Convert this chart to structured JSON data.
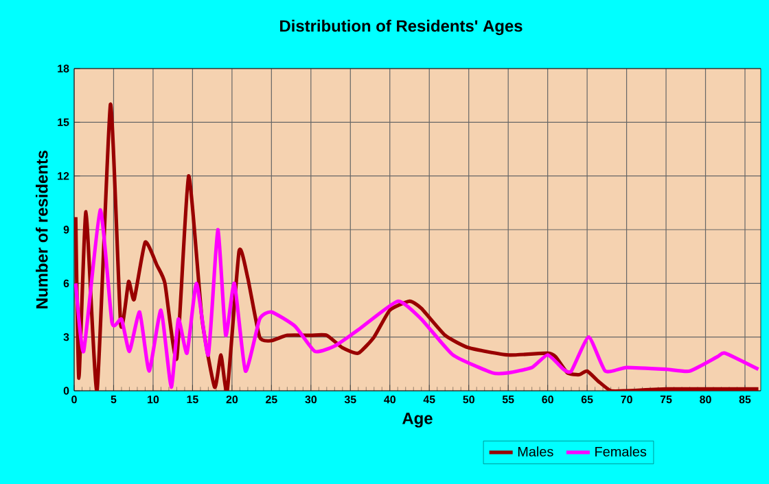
{
  "chart_data": {
    "type": "line",
    "title": "Distribution of Residents' Ages",
    "xlabel": "Age",
    "ylabel": "Number of residents",
    "xlim": [
      0,
      87
    ],
    "xticks": [
      0,
      5,
      10,
      15,
      20,
      25,
      30,
      35,
      40,
      45,
      50,
      55,
      60,
      65,
      70,
      75,
      80,
      85
    ],
    "ylim": [
      0,
      18
    ],
    "yticks": [
      0,
      3,
      6,
      9,
      12,
      15,
      18
    ],
    "grid": true,
    "legend": "bottom",
    "series": [
      {
        "name": "Males",
        "color": "#990000",
        "x": [
          0.2,
          0.6,
          1.5,
          2.9,
          4.6,
          5.9,
          6.9,
          7.6,
          9,
          10.5,
          11.5,
          13,
          14.5,
          16.2,
          17.8,
          18.6,
          19.4,
          20.9,
          22,
          23.5,
          25,
          27,
          30,
          32,
          34,
          36,
          38,
          40,
          42.5,
          44,
          47,
          50,
          55,
          60,
          61,
          62.5,
          64,
          65,
          66.5,
          68,
          70,
          75,
          80,
          86.7
        ],
        "values": [
          9.7,
          0.7,
          10,
          0,
          16,
          3.7,
          6.1,
          5.1,
          8.3,
          7,
          6,
          1.8,
          12,
          4,
          0.2,
          2,
          0,
          7.8,
          6.3,
          3,
          2.8,
          3.1,
          3.1,
          3.1,
          2.4,
          2.1,
          3,
          4.5,
          5,
          4.6,
          3.1,
          2.4,
          2,
          2.1,
          1.9,
          1,
          0.9,
          1.1,
          0.5,
          0,
          0,
          0.1,
          0.1,
          0.1
        ]
      },
      {
        "name": "Females",
        "color": "#ff00ff",
        "x": [
          0.2,
          1.2,
          3.3,
          4.8,
          6,
          7,
          8.3,
          9.5,
          11,
          12.3,
          13.2,
          14.3,
          15.5,
          17,
          18.2,
          19.2,
          20.3,
          21.7,
          23.5,
          25,
          28,
          30.5,
          33,
          36,
          41,
          44,
          48,
          53,
          55,
          58,
          60,
          62,
          63,
          65.2,
          67.3,
          70,
          75,
          78,
          81.5,
          82.5,
          86.7
        ],
        "values": [
          6,
          2.2,
          10.1,
          3.8,
          4,
          2.2,
          4.4,
          1.1,
          4.5,
          0.2,
          4,
          2.1,
          6,
          2,
          9,
          3.1,
          6,
          1.1,
          4,
          4.4,
          3.6,
          2.2,
          2.5,
          3.4,
          5,
          4,
          2,
          1,
          1,
          1.3,
          2,
          1.2,
          1.1,
          3,
          1.1,
          1.3,
          1.2,
          1.1,
          1.9,
          2.1,
          1.2
        ]
      }
    ]
  }
}
